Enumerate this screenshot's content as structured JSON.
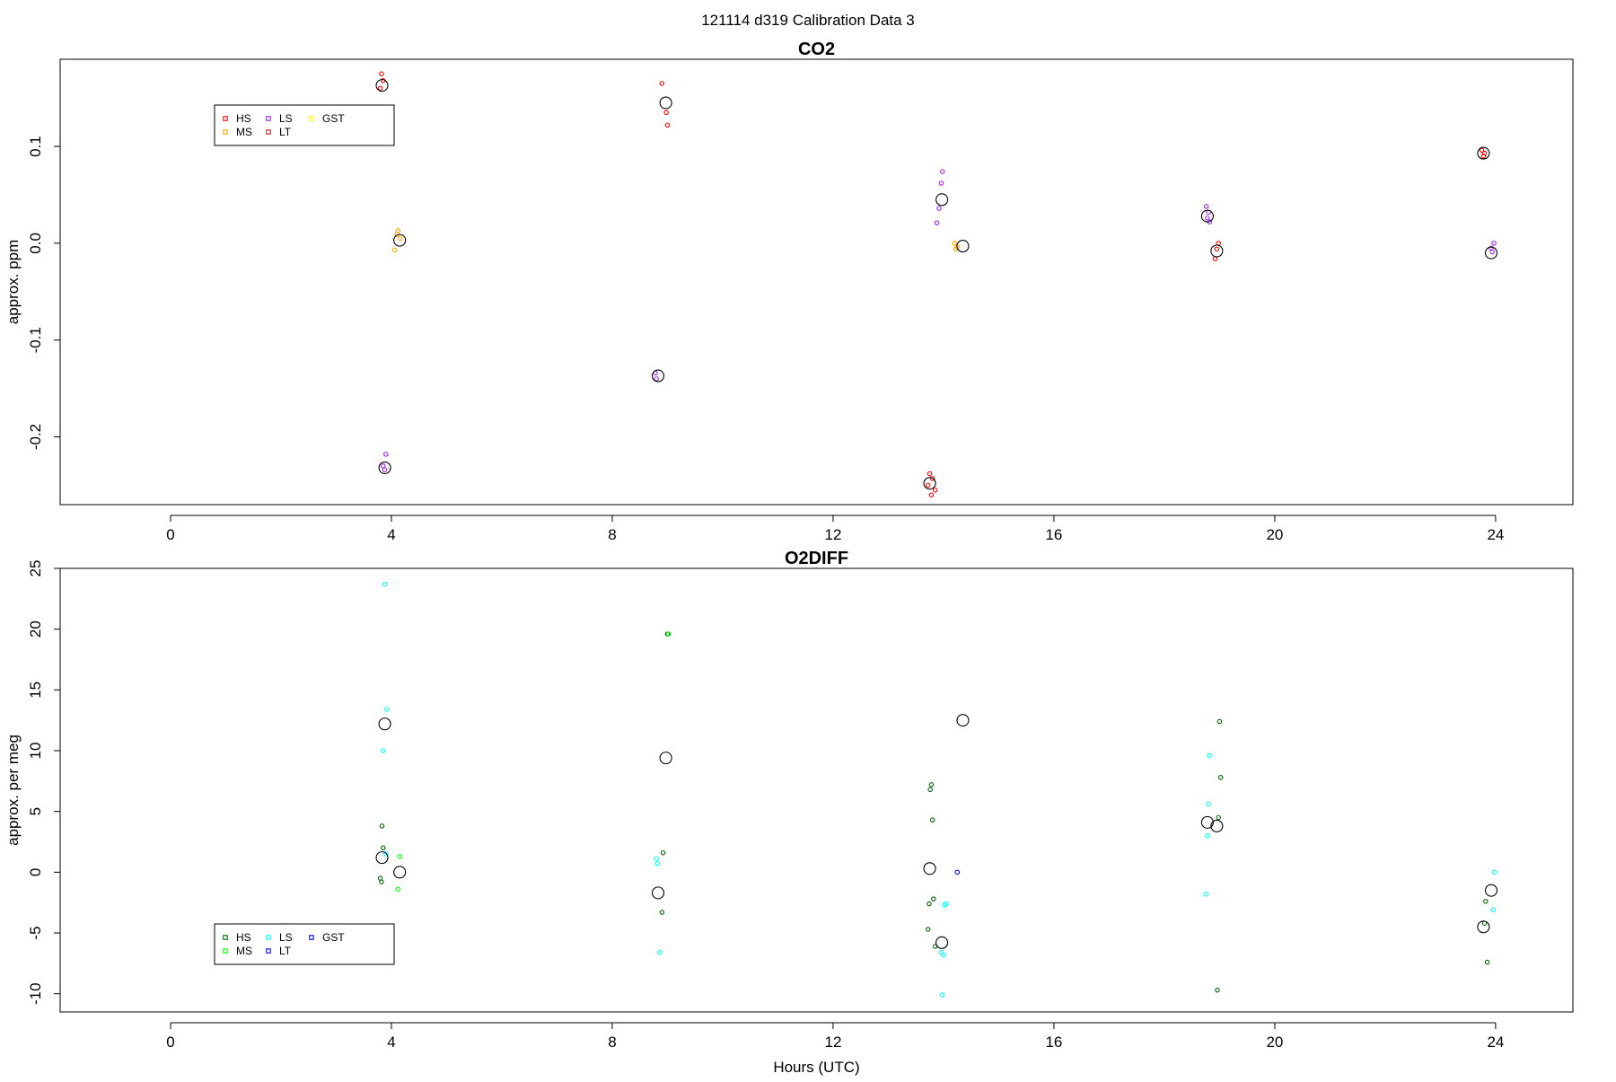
{
  "figure_title": "121114   d319   Calibration Data 3",
  "chart_data": [
    {
      "type": "scatter",
      "title": "CO2",
      "xlabel": "",
      "ylabel": "approx. ppm",
      "xlim": [
        -2,
        25.4
      ],
      "ylim": [
        -0.27,
        0.19
      ],
      "xticks": [
        0,
        4,
        8,
        12,
        16,
        20,
        24
      ],
      "yticks": [
        -0.2,
        -0.1,
        0.0,
        0.1
      ],
      "ytick_labels": [
        "-0.2",
        "-0.1",
        "0.0",
        "0.1"
      ],
      "legend": {
        "position": "top-left",
        "entries": [
          {
            "label": "HS",
            "color": "#ff0000"
          },
          {
            "label": "MS",
            "color": "#ffa500"
          },
          {
            "label": "LS",
            "color": "#a020f0"
          },
          {
            "label": "LT",
            "color": "#b22222"
          },
          {
            "label": "GST",
            "color": "#ffff00"
          }
        ]
      },
      "series": [
        {
          "color": "#ff0000",
          "points": [
            [
              3.82,
              0.175
            ],
            [
              3.85,
              0.168
            ],
            [
              3.8,
              0.16
            ],
            [
              8.9,
              0.165
            ],
            [
              8.98,
              0.135
            ],
            [
              9.0,
              0.122
            ],
            [
              13.75,
              -0.238
            ],
            [
              13.8,
              -0.243
            ],
            [
              13.72,
              -0.25
            ],
            [
              13.85,
              -0.255
            ],
            [
              13.78,
              -0.26
            ],
            [
              18.98,
              0.0
            ],
            [
              18.95,
              -0.006
            ],
            [
              18.92,
              -0.016
            ],
            [
              23.75,
              0.096
            ],
            [
              23.8,
              0.093
            ],
            [
              23.78,
              0.09
            ]
          ]
        },
        {
          "color": "#ffa500",
          "points": [
            [
              4.12,
              0.013
            ],
            [
              4.1,
              0.009
            ],
            [
              4.16,
              0.005
            ],
            [
              4.06,
              -0.007
            ],
            [
              14.2,
              0.0
            ],
            [
              14.25,
              -0.004
            ],
            [
              14.22,
              -0.006
            ]
          ]
        },
        {
          "color": "#a020f0",
          "points": [
            [
              3.9,
              -0.218
            ],
            [
              3.85,
              -0.23
            ],
            [
              3.88,
              -0.234
            ],
            [
              8.78,
              -0.134
            ],
            [
              8.8,
              -0.14
            ],
            [
              13.98,
              0.074
            ],
            [
              13.96,
              0.062
            ],
            [
              13.92,
              0.036
            ],
            [
              13.88,
              0.021
            ],
            [
              18.76,
              0.038
            ],
            [
              18.8,
              0.032
            ],
            [
              18.78,
              0.026
            ],
            [
              18.82,
              0.022
            ],
            [
              23.97,
              0.0
            ],
            [
              23.92,
              -0.005
            ],
            [
              23.94,
              -0.009
            ]
          ]
        }
      ],
      "means": [
        [
          3.83,
          0.163
        ],
        [
          4.15,
          0.003
        ],
        [
          3.88,
          -0.232
        ],
        [
          8.83,
          -0.137
        ],
        [
          8.97,
          0.145
        ],
        [
          13.75,
          -0.248
        ],
        [
          13.97,
          0.045
        ],
        [
          14.35,
          -0.003
        ],
        [
          18.78,
          0.028
        ],
        [
          18.95,
          -0.008
        ],
        [
          23.78,
          0.093
        ],
        [
          23.92,
          -0.01
        ]
      ]
    },
    {
      "type": "scatter",
      "title": "O2DIFF",
      "xlabel": "Hours (UTC)",
      "ylabel": "approx. per meg",
      "xlim": [
        -2,
        25.4
      ],
      "ylim": [
        -11.5,
        25
      ],
      "xticks": [
        0,
        4,
        8,
        12,
        16,
        20,
        24
      ],
      "yticks": [
        -10,
        -5,
        0,
        5,
        10,
        15,
        20,
        25
      ],
      "ytick_labels": [
        "-10",
        "-5",
        "0",
        "5",
        "10",
        "15",
        "20",
        "25"
      ],
      "legend": {
        "position": "bottom-left",
        "entries": [
          {
            "label": "HS",
            "color": "#006400"
          },
          {
            "label": "MS",
            "color": "#00ff00"
          },
          {
            "label": "LS",
            "color": "#00ffff"
          },
          {
            "label": "LT",
            "color": "#0000ff"
          },
          {
            "label": "GST",
            "color": "#0000cd"
          }
        ]
      },
      "series": [
        {
          "color": "#006400",
          "points": [
            [
              3.83,
              3.8
            ],
            [
              3.85,
              2.0
            ],
            [
              3.8,
              -0.5
            ],
            [
              3.82,
              -0.8
            ],
            [
              8.92,
              1.6
            ],
            [
              8.9,
              -3.3
            ],
            [
              9.0,
              19.6
            ],
            [
              13.78,
              7.2
            ],
            [
              13.76,
              6.8
            ],
            [
              13.8,
              4.3
            ],
            [
              13.82,
              -2.2
            ],
            [
              13.74,
              -2.6
            ],
            [
              13.72,
              -4.7
            ],
            [
              13.85,
              -6.1
            ],
            [
              19.0,
              12.4
            ],
            [
              19.02,
              7.8
            ],
            [
              18.98,
              4.5
            ],
            [
              18.96,
              -9.7
            ],
            [
              23.82,
              -2.4
            ],
            [
              23.8,
              -4.2
            ],
            [
              23.85,
              -7.4
            ]
          ]
        },
        {
          "color": "#00ff00",
          "points": [
            [
              4.15,
              1.3
            ],
            [
              4.12,
              -1.4
            ],
            [
              9.02,
              19.6
            ]
          ]
        },
        {
          "color": "#00ffff",
          "points": [
            [
              3.88,
              23.7
            ],
            [
              3.92,
              13.4
            ],
            [
              3.85,
              10.0
            ],
            [
              3.9,
              1.5
            ],
            [
              8.8,
              1.1
            ],
            [
              8.82,
              0.7
            ],
            [
              8.86,
              -6.6
            ],
            [
              14.05,
              -2.6
            ],
            [
              14.02,
              -2.7
            ],
            [
              13.96,
              -6.6
            ],
            [
              14.0,
              -6.8
            ],
            [
              13.98,
              -10.1
            ],
            [
              18.82,
              9.6
            ],
            [
              18.8,
              5.6
            ],
            [
              18.78,
              3.0
            ],
            [
              18.76,
              -1.8
            ],
            [
              23.98,
              0.0
            ],
            [
              23.96,
              -3.1
            ]
          ]
        },
        {
          "color": "#0000ff",
          "points": [
            [
              14.25,
              0.0
            ]
          ]
        }
      ],
      "means": [
        [
          3.88,
          12.2
        ],
        [
          3.83,
          1.2
        ],
        [
          4.15,
          0.0
        ],
        [
          8.83,
          -1.7
        ],
        [
          8.97,
          9.4
        ],
        [
          13.75,
          0.3
        ],
        [
          13.97,
          -5.8
        ],
        [
          14.35,
          12.5
        ],
        [
          18.78,
          4.1
        ],
        [
          18.95,
          3.8
        ],
        [
          23.78,
          -4.5
        ],
        [
          23.92,
          -1.5
        ]
      ]
    }
  ]
}
